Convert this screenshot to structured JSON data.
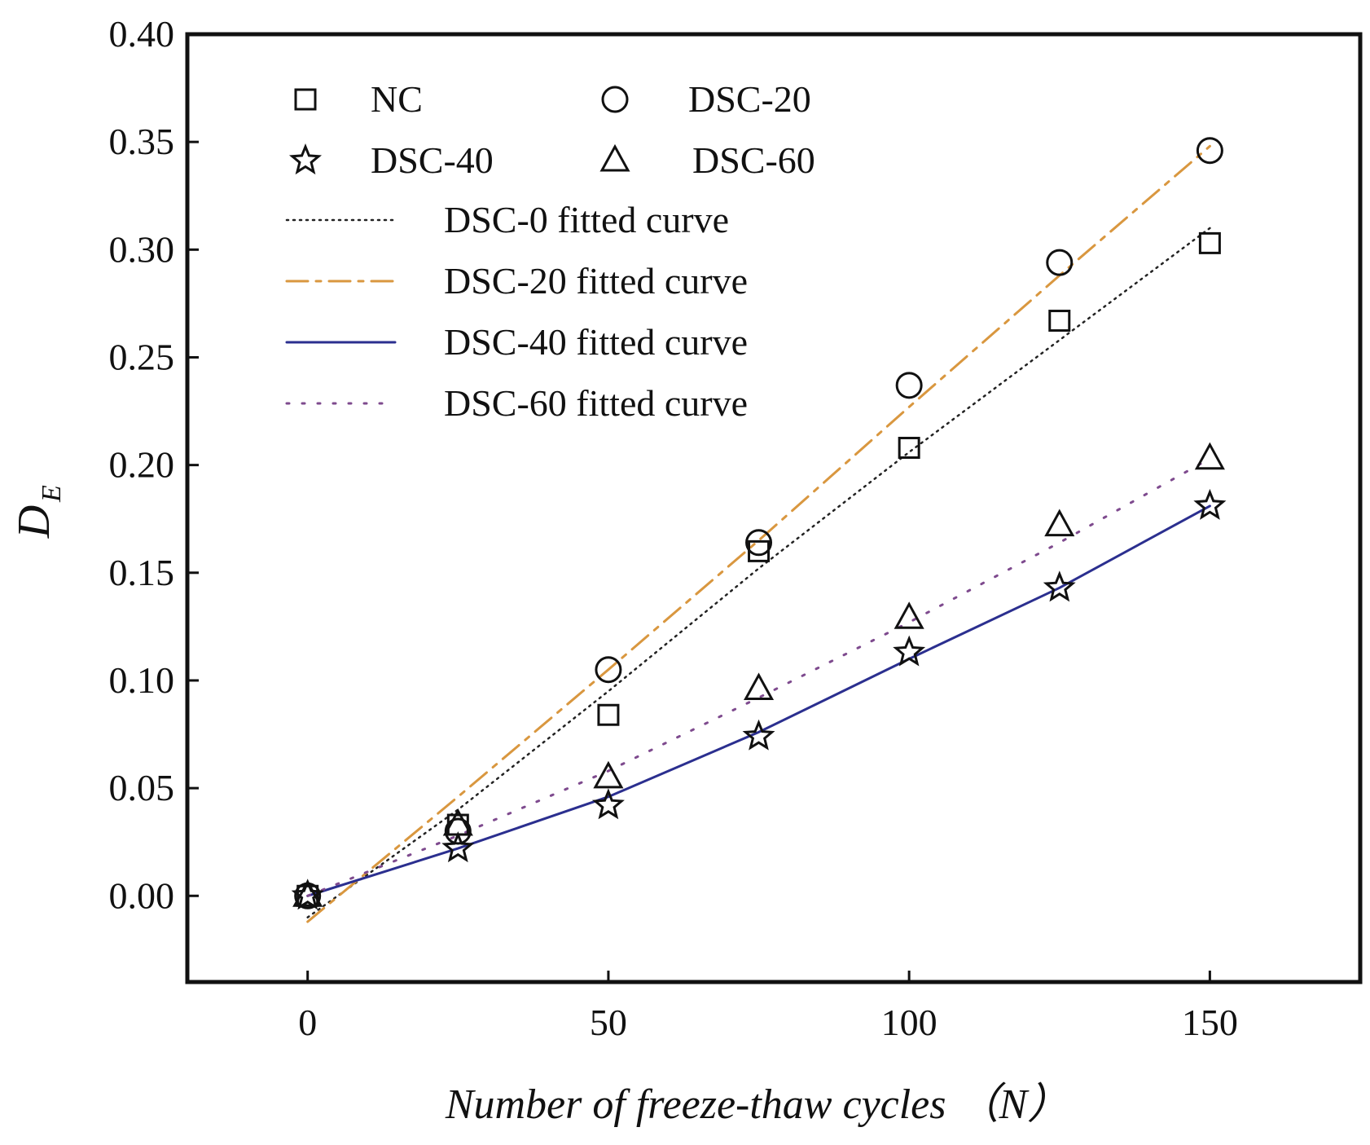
{
  "chart_data": {
    "type": "scatter",
    "title": "",
    "xlabel": "Number of freeze-thaw cycles （N）",
    "ylabel": {
      "main": "D",
      "sub": "E"
    },
    "xlim": [
      -20,
      175
    ],
    "ylim": [
      -0.04,
      0.4
    ],
    "xticks": [
      0,
      50,
      100,
      150
    ],
    "yticks": [
      0.0,
      0.05,
      0.1,
      0.15,
      0.2,
      0.25,
      0.3,
      0.35,
      0.4
    ],
    "ytick_labels": [
      "0.00",
      "0.05",
      "0.10",
      "0.15",
      "0.20",
      "0.25",
      "0.30",
      "0.35",
      "0.40"
    ],
    "grid": false,
    "legend_position": "top-left",
    "x": [
      0,
      25,
      50,
      75,
      100,
      125,
      150
    ],
    "series": [
      {
        "name": "NC",
        "marker": "square",
        "values": [
          0.0,
          0.033,
          0.084,
          0.16,
          0.208,
          0.267,
          0.303
        ]
      },
      {
        "name": "DSC-20",
        "marker": "circle",
        "values": [
          0.0,
          0.03,
          0.105,
          0.164,
          0.237,
          0.294,
          0.346
        ]
      },
      {
        "name": "DSC-40",
        "marker": "star",
        "values": [
          0.0,
          0.022,
          0.042,
          0.074,
          0.113,
          0.143,
          0.181
        ]
      },
      {
        "name": "DSC-60",
        "marker": "triangle",
        "values": [
          0.0,
          0.033,
          0.055,
          0.096,
          0.129,
          0.172,
          0.203
        ]
      }
    ],
    "fitted_curves": [
      {
        "name": "DSC-0 fitted curve",
        "style": "dotted",
        "color": "#222222",
        "x": [
          0,
          25,
          50,
          75,
          100,
          125,
          150
        ],
        "values": [
          -0.01,
          0.04,
          0.095,
          0.152,
          0.206,
          0.258,
          0.31
        ]
      },
      {
        "name": "DSC-20 fitted curve",
        "style": "dashdot",
        "color": "#D9973F",
        "x": [
          0,
          25,
          50,
          75,
          100,
          125,
          150
        ],
        "values": [
          -0.012,
          0.046,
          0.105,
          0.165,
          0.227,
          0.288,
          0.348
        ]
      },
      {
        "name": "DSC-40 fitted curve",
        "style": "solid",
        "color": "#2B2F8F",
        "x": [
          0,
          25,
          50,
          75,
          100,
          125,
          150
        ],
        "values": [
          0.0,
          0.022,
          0.046,
          0.076,
          0.11,
          0.143,
          0.181
        ]
      },
      {
        "name": "DSC-60 fitted curve",
        "style": "sparse-dotted",
        "color": "#7E4A8E",
        "x": [
          0,
          25,
          50,
          75,
          100,
          125,
          150
        ],
        "values": [
          0.0,
          0.028,
          0.058,
          0.092,
          0.127,
          0.164,
          0.203
        ]
      }
    ]
  }
}
